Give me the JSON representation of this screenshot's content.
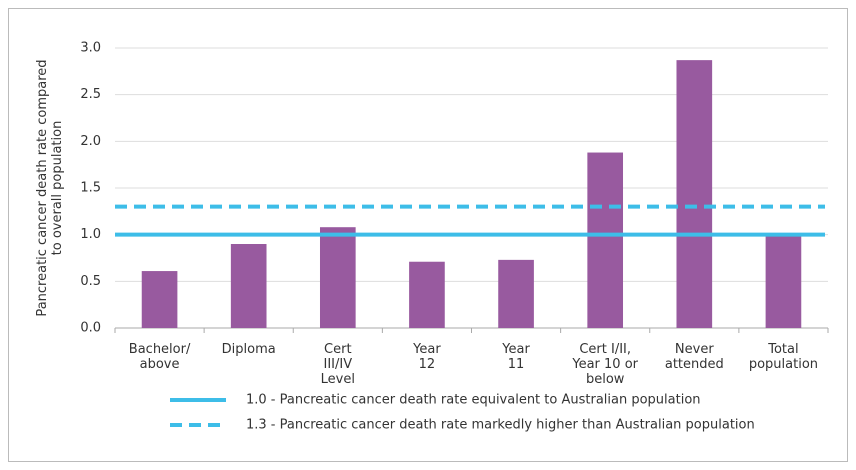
{
  "chart_data": {
    "type": "bar",
    "y_axis_label": "Pancreatic cancer death rate compared\nto overall population",
    "categories": [
      "Bachelor/\nabove",
      "Diploma",
      "Cert\nIII/IV\nLevel",
      "Year\n12",
      "Year\n11",
      "Cert I/II,\nYear 10 or\nbelow",
      "Never\nattended",
      "Total\npopulation"
    ],
    "values": [
      0.61,
      0.9,
      1.08,
      0.71,
      0.73,
      1.88,
      2.87,
      1.0
    ],
    "color": "#985a9f",
    "ylim": [
      0,
      3
    ],
    "yticks": [
      {
        "value": 0,
        "label": "0.0"
      },
      {
        "value": 0.5,
        "label": "0.5"
      },
      {
        "value": 1,
        "label": "1.0"
      },
      {
        "value": 1.5,
        "label": "1.5"
      },
      {
        "value": 2,
        "label": "2.0"
      },
      {
        "value": 2.5,
        "label": "2.5"
      },
      {
        "value": 3,
        "label": "3.0"
      }
    ],
    "grid": true,
    "reference_lines": [
      {
        "name": "1.0 - Pancreatic cancer death rate equivalent to Australian population",
        "value": 1.0,
        "color": "#3dbde8",
        "dashed": false
      },
      {
        "name": "1.3 - Pancreatic cancer death rate markedly higher than Australian population",
        "value": 1.3,
        "color": "#3dbde8",
        "dashed": true
      }
    ]
  }
}
